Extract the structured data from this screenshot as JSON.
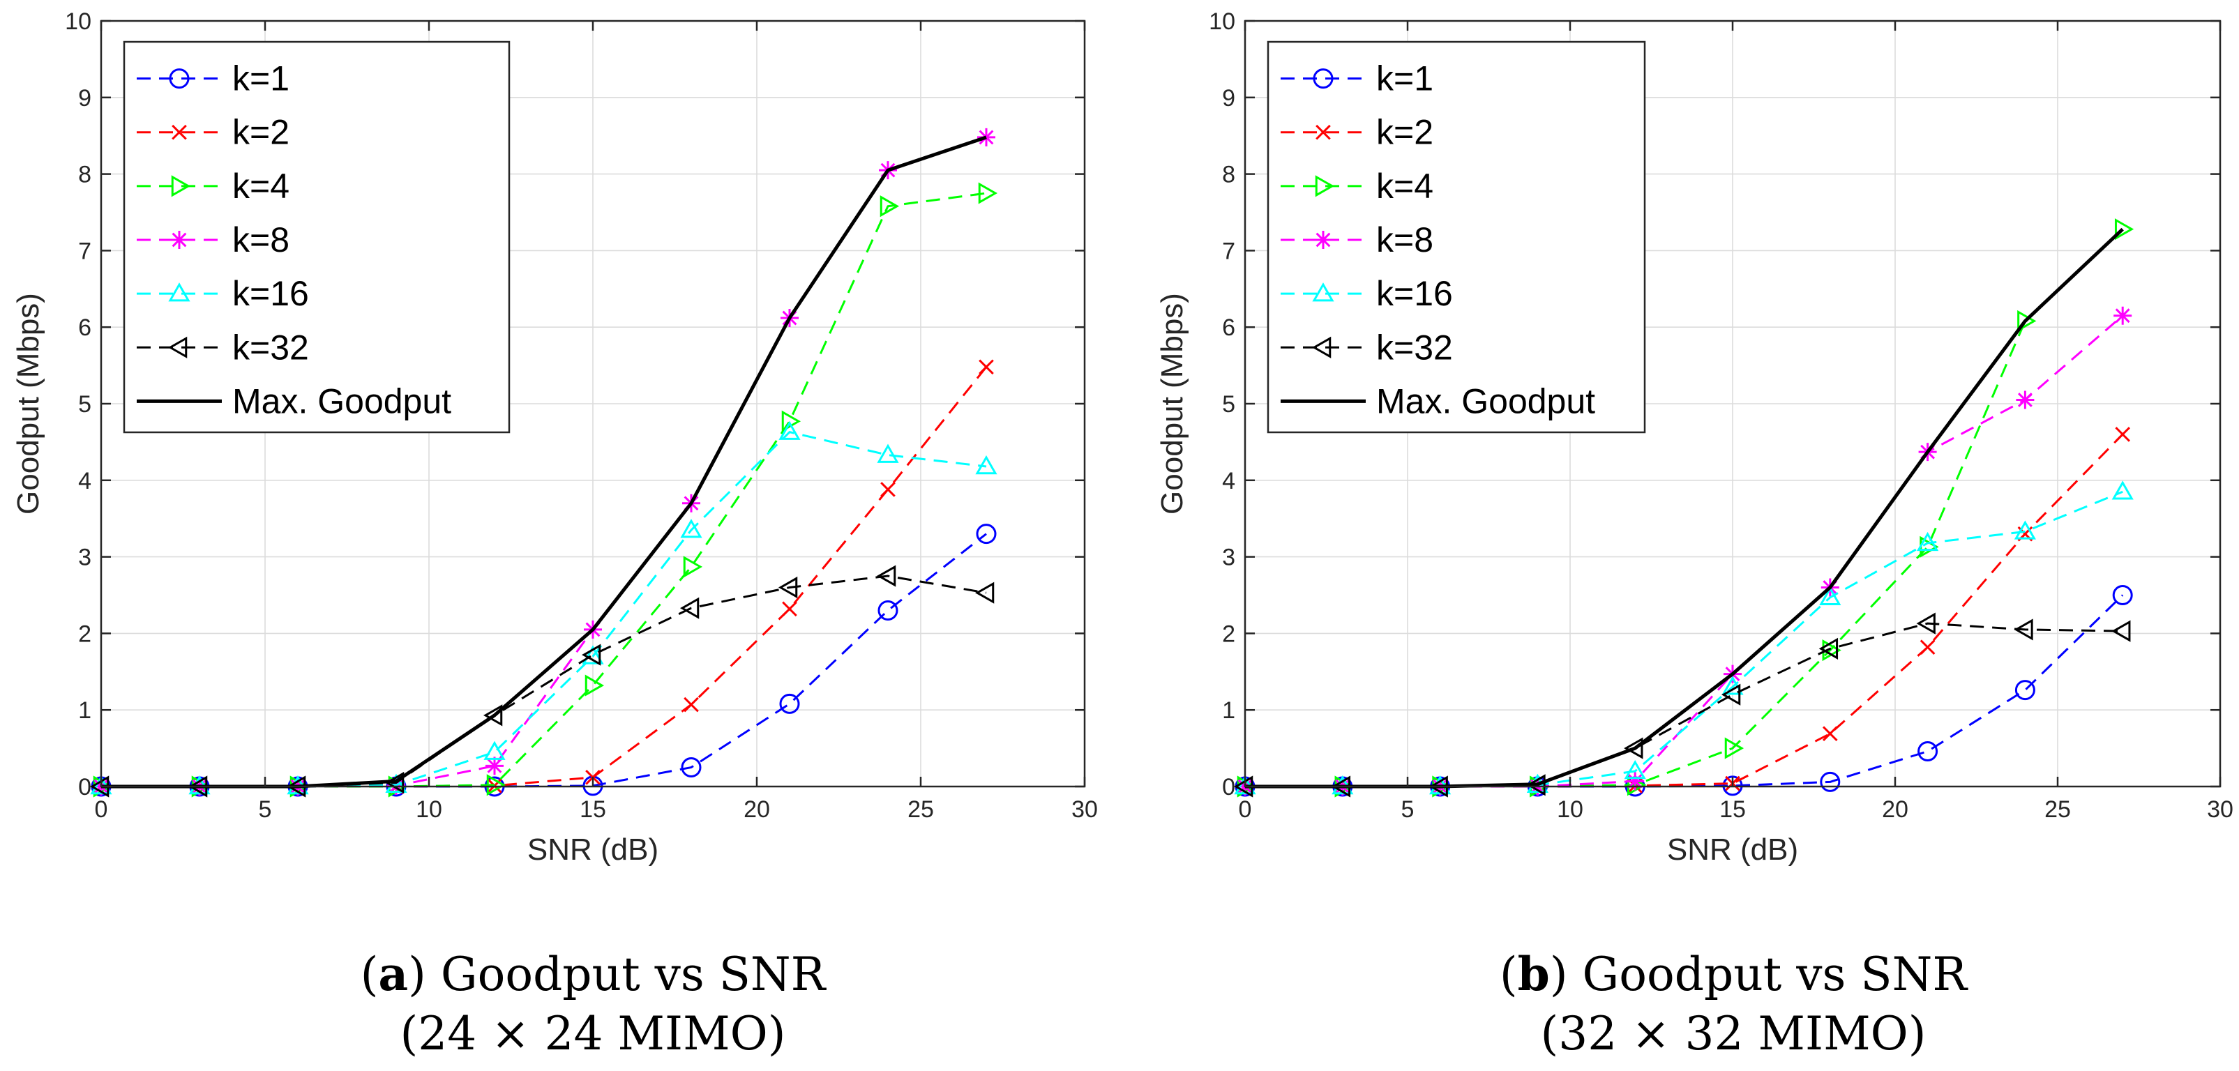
{
  "chart_data": [
    {
      "type": "line",
      "panel": "a",
      "caption": {
        "letter": "a",
        "title": "Goodput vs SNR",
        "subtitle": "(24 × 24 MIMO)"
      },
      "xlabel": "SNR (dB)",
      "ylabel": "Goodput (Mbps)",
      "xlim": [
        0,
        30
      ],
      "ylim": [
        0,
        10
      ],
      "xticks": [
        0,
        5,
        10,
        15,
        20,
        25,
        30
      ],
      "yticks": [
        0,
        1,
        2,
        3,
        4,
        5,
        6,
        7,
        8,
        9,
        10
      ],
      "grid": true,
      "legend_position": "top-left",
      "x": [
        0,
        3,
        6,
        9,
        12,
        15,
        18,
        21,
        24,
        27
      ],
      "series": [
        {
          "name": "k=1",
          "color": "#0000ff",
          "marker": "circle",
          "dashed": true,
          "values": [
            0,
            0,
            0,
            0,
            0,
            0.01,
            0.25,
            1.08,
            2.3,
            3.3
          ]
        },
        {
          "name": "k=2",
          "color": "#ff0000",
          "marker": "x",
          "dashed": true,
          "values": [
            0,
            0,
            0,
            0,
            0.01,
            0.12,
            1.07,
            2.32,
            3.88,
            5.48
          ]
        },
        {
          "name": "k=4",
          "color": "#00ff00",
          "marker": "triangle-right",
          "dashed": true,
          "values": [
            0,
            0,
            0,
            0,
            0.02,
            1.32,
            2.87,
            4.77,
            7.58,
            7.75
          ]
        },
        {
          "name": "k=8",
          "color": "#ff00ff",
          "marker": "asterisk",
          "dashed": true,
          "values": [
            0,
            0,
            0,
            0.01,
            0.27,
            2.05,
            3.7,
            6.12,
            8.05,
            8.48
          ]
        },
        {
          "name": "k=16",
          "color": "#00ffff",
          "marker": "triangle-up",
          "dashed": true,
          "values": [
            0,
            0,
            0,
            0.02,
            0.45,
            1.7,
            3.35,
            4.63,
            4.33,
            4.18
          ]
        },
        {
          "name": "k=32",
          "color": "#000000",
          "marker": "triangle-left",
          "dashed": true,
          "values": [
            0,
            0,
            0,
            0.05,
            0.93,
            1.72,
            2.33,
            2.6,
            2.75,
            2.53
          ]
        },
        {
          "name": "Max. Goodput",
          "color": "#000000",
          "marker": "none",
          "dashed": false,
          "values": [
            0,
            0,
            0,
            0.07,
            0.93,
            2.05,
            3.7,
            6.12,
            8.05,
            8.48
          ]
        }
      ]
    },
    {
      "type": "line",
      "panel": "b",
      "caption": {
        "letter": "b",
        "title": "Goodput vs SNR",
        "subtitle": "(32 × 32 MIMO)"
      },
      "xlabel": "SNR (dB)",
      "ylabel": "Goodput (Mbps)",
      "xlim": [
        0,
        30
      ],
      "ylim": [
        0,
        10
      ],
      "xticks": [
        0,
        5,
        10,
        15,
        20,
        25,
        30
      ],
      "yticks": [
        0,
        1,
        2,
        3,
        4,
        5,
        6,
        7,
        8,
        9,
        10
      ],
      "grid": true,
      "legend_position": "top-left",
      "x": [
        0,
        3,
        6,
        9,
        12,
        15,
        18,
        21,
        24,
        27
      ],
      "series": [
        {
          "name": "k=1",
          "color": "#0000ff",
          "marker": "circle",
          "dashed": true,
          "values": [
            0,
            0,
            0,
            0,
            0,
            0.01,
            0.06,
            0.46,
            1.26,
            2.5
          ]
        },
        {
          "name": "k=2",
          "color": "#ff0000",
          "marker": "x",
          "dashed": true,
          "values": [
            0,
            0,
            0,
            0,
            0.01,
            0.04,
            0.69,
            1.82,
            3.3,
            4.6
          ]
        },
        {
          "name": "k=4",
          "color": "#00ff00",
          "marker": "triangle-right",
          "dashed": true,
          "values": [
            0,
            0,
            0,
            0,
            0.02,
            0.5,
            1.78,
            3.13,
            6.08,
            7.28
          ]
        },
        {
          "name": "k=8",
          "color": "#ff00ff",
          "marker": "asterisk",
          "dashed": true,
          "values": [
            0,
            0,
            0,
            0,
            0.07,
            1.47,
            2.6,
            4.37,
            5.05,
            6.15
          ]
        },
        {
          "name": "k=16",
          "color": "#00ffff",
          "marker": "triangle-up",
          "dashed": true,
          "values": [
            0,
            0,
            0,
            0.02,
            0.2,
            1.3,
            2.47,
            3.18,
            3.33,
            3.85
          ]
        },
        {
          "name": "k=32",
          "color": "#000000",
          "marker": "triangle-left",
          "dashed": true,
          "values": [
            0,
            0,
            0,
            0.02,
            0.5,
            1.2,
            1.8,
            2.13,
            2.05,
            2.03
          ]
        },
        {
          "name": "Max. Goodput",
          "color": "#000000",
          "marker": "none",
          "dashed": false,
          "values": [
            0,
            0,
            0,
            0.03,
            0.5,
            1.47,
            2.6,
            4.37,
            6.08,
            7.28
          ]
        }
      ]
    }
  ]
}
